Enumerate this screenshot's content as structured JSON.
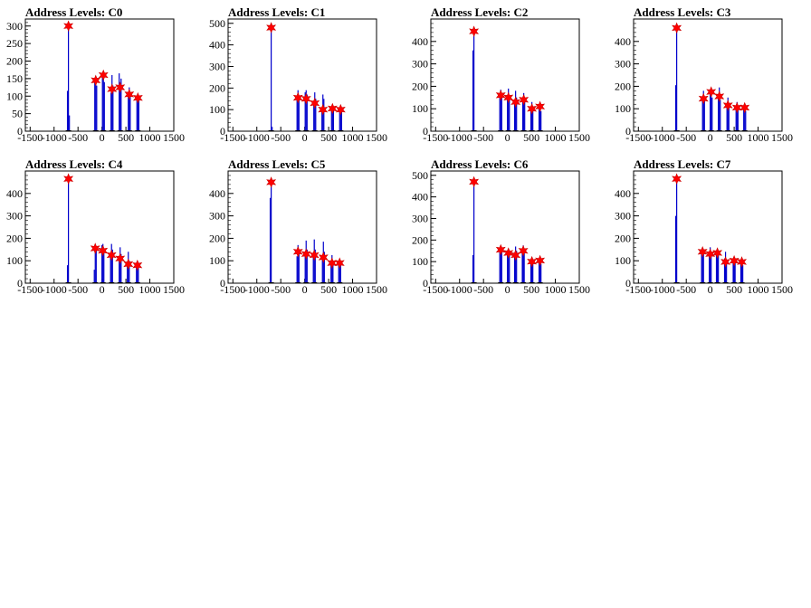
{
  "charts": [
    {
      "title": "Address Levels: C0",
      "ylim": [
        0,
        320
      ],
      "yticks": [
        0,
        50,
        100,
        150,
        200,
        250,
        300
      ]
    },
    {
      "title": "Address Levels: C1",
      "ylim": [
        0,
        520
      ],
      "yticks": [
        0,
        100,
        200,
        300,
        400,
        500
      ]
    },
    {
      "title": "Address Levels: C2",
      "ylim": [
        0,
        500
      ],
      "yticks": [
        0,
        100,
        200,
        300,
        400
      ]
    },
    {
      "title": "Address Levels: C3",
      "ylim": [
        0,
        500
      ],
      "yticks": [
        0,
        100,
        200,
        300,
        400
      ]
    },
    {
      "title": "Address Levels: C4",
      "ylim": [
        0,
        500
      ],
      "yticks": [
        0,
        100,
        200,
        300,
        400
      ]
    },
    {
      "title": "Address Levels: C5",
      "ylim": [
        0,
        500
      ],
      "yticks": [
        0,
        100,
        200,
        300,
        400
      ]
    },
    {
      "title": "Address Levels: C6",
      "ylim": [
        0,
        520
      ],
      "yticks": [
        0,
        100,
        200,
        300,
        400,
        500
      ]
    },
    {
      "title": "Address Levels: C7",
      "ylim": [
        0,
        500
      ],
      "yticks": [
        0,
        100,
        200,
        300,
        400
      ]
    }
  ],
  "xticks": [
    -1500,
    -1000,
    -500,
    0,
    500,
    1000,
    1500
  ],
  "colors": {
    "histogram": "#0000cc",
    "marker": "#ff0000",
    "axis": "#000000"
  },
  "chart_data": [
    {
      "type": "bar",
      "title": "Address Levels: C0",
      "xlim": [
        -1600,
        1500
      ],
      "ylim": [
        0,
        320
      ],
      "peaks": [
        [
          -700,
          300
        ],
        [
          -130,
          145
        ],
        [
          30,
          160
        ],
        [
          210,
          120
        ],
        [
          380,
          125
        ],
        [
          570,
          105
        ],
        [
          750,
          95
        ]
      ],
      "histogram": [
        [
          -720,
          115
        ],
        [
          -700,
          310
        ],
        [
          -680,
          45
        ],
        [
          -150,
          140
        ],
        [
          -130,
          150
        ],
        [
          -110,
          130
        ],
        [
          10,
          165
        ],
        [
          30,
          160
        ],
        [
          50,
          140
        ],
        [
          190,
          110
        ],
        [
          210,
          160
        ],
        [
          230,
          130
        ],
        [
          360,
          165
        ],
        [
          380,
          130
        ],
        [
          400,
          150
        ],
        [
          550,
          110
        ],
        [
          570,
          125
        ],
        [
          590,
          100
        ],
        [
          730,
          100
        ],
        [
          750,
          95
        ],
        [
          770,
          90
        ]
      ]
    },
    {
      "type": "bar",
      "title": "Address Levels: C1",
      "xlim": [
        -1600,
        1500
      ],
      "ylim": [
        0,
        520
      ],
      "peaks": [
        [
          -700,
          480
        ],
        [
          -140,
          155
        ],
        [
          30,
          150
        ],
        [
          210,
          130
        ],
        [
          380,
          100
        ],
        [
          580,
          105
        ],
        [
          750,
          100
        ]
      ],
      "histogram": [
        [
          -700,
          490
        ],
        [
          -680,
          20
        ],
        [
          -160,
          150
        ],
        [
          -140,
          190
        ],
        [
          -120,
          160
        ],
        [
          10,
          180
        ],
        [
          30,
          190
        ],
        [
          50,
          170
        ],
        [
          190,
          130
        ],
        [
          210,
          180
        ],
        [
          230,
          150
        ],
        [
          360,
          110
        ],
        [
          380,
          170
        ],
        [
          400,
          150
        ],
        [
          560,
          110
        ],
        [
          580,
          120
        ],
        [
          600,
          100
        ],
        [
          730,
          110
        ],
        [
          750,
          105
        ],
        [
          770,
          90
        ]
      ]
    },
    {
      "type": "bar",
      "title": "Address Levels: C2",
      "xlim": [
        -1600,
        1500
      ],
      "ylim": [
        0,
        500
      ],
      "peaks": [
        [
          -700,
          445
        ],
        [
          -140,
          160
        ],
        [
          20,
          150
        ],
        [
          170,
          130
        ],
        [
          340,
          140
        ],
        [
          510,
          100
        ],
        [
          680,
          110
        ]
      ],
      "histogram": [
        [
          -720,
          360
        ],
        [
          -700,
          450
        ],
        [
          -160,
          150
        ],
        [
          -140,
          185
        ],
        [
          -120,
          160
        ],
        [
          0,
          160
        ],
        [
          20,
          190
        ],
        [
          40,
          150
        ],
        [
          150,
          140
        ],
        [
          170,
          180
        ],
        [
          190,
          150
        ],
        [
          320,
          150
        ],
        [
          340,
          170
        ],
        [
          360,
          140
        ],
        [
          490,
          100
        ],
        [
          510,
          130
        ],
        [
          530,
          110
        ],
        [
          660,
          110
        ],
        [
          680,
          115
        ],
        [
          700,
          90
        ]
      ]
    },
    {
      "type": "bar",
      "title": "Address Levels: C3",
      "xlim": [
        -1600,
        1500
      ],
      "ylim": [
        0,
        500
      ],
      "peaks": [
        [
          -700,
          460
        ],
        [
          -140,
          145
        ],
        [
          20,
          175
        ],
        [
          190,
          155
        ],
        [
          370,
          115
        ],
        [
          560,
          105
        ],
        [
          720,
          105
        ]
      ],
      "histogram": [
        [
          -720,
          205
        ],
        [
          -700,
          465
        ],
        [
          -160,
          150
        ],
        [
          -140,
          180
        ],
        [
          -120,
          140
        ],
        [
          0,
          170
        ],
        [
          20,
          190
        ],
        [
          40,
          150
        ],
        [
          170,
          150
        ],
        [
          190,
          195
        ],
        [
          210,
          140
        ],
        [
          350,
          120
        ],
        [
          370,
          150
        ],
        [
          390,
          110
        ],
        [
          540,
          110
        ],
        [
          560,
          130
        ],
        [
          580,
          100
        ],
        [
          700,
          110
        ],
        [
          720,
          120
        ],
        [
          740,
          90
        ]
      ]
    },
    {
      "type": "bar",
      "title": "Address Levels: C4",
      "xlim": [
        -1600,
        1500
      ],
      "ylim": [
        0,
        500
      ],
      "peaks": [
        [
          -700,
          465
        ],
        [
          -140,
          155
        ],
        [
          20,
          145
        ],
        [
          200,
          125
        ],
        [
          380,
          110
        ],
        [
          550,
          85
        ],
        [
          740,
          80
        ]
      ],
      "histogram": [
        [
          -720,
          80
        ],
        [
          -700,
          470
        ],
        [
          -160,
          60
        ],
        [
          -140,
          165
        ],
        [
          -120,
          150
        ],
        [
          0,
          170
        ],
        [
          20,
          175
        ],
        [
          40,
          140
        ],
        [
          180,
          130
        ],
        [
          200,
          175
        ],
        [
          220,
          150
        ],
        [
          360,
          115
        ],
        [
          380,
          160
        ],
        [
          400,
          130
        ],
        [
          530,
          90
        ],
        [
          550,
          140
        ],
        [
          570,
          100
        ],
        [
          720,
          85
        ],
        [
          740,
          90
        ],
        [
          760,
          70
        ]
      ]
    },
    {
      "type": "bar",
      "title": "Address Levels: C5",
      "xlim": [
        -1600,
        1500
      ],
      "ylim": [
        0,
        500
      ],
      "peaks": [
        [
          -700,
          450
        ],
        [
          -140,
          140
        ],
        [
          30,
          130
        ],
        [
          200,
          125
        ],
        [
          390,
          115
        ],
        [
          570,
          90
        ],
        [
          730,
          90
        ]
      ],
      "histogram": [
        [
          -720,
          380
        ],
        [
          -700,
          455
        ],
        [
          -160,
          120
        ],
        [
          -140,
          170
        ],
        [
          -120,
          130
        ],
        [
          10,
          140
        ],
        [
          30,
          190
        ],
        [
          50,
          150
        ],
        [
          180,
          130
        ],
        [
          200,
          195
        ],
        [
          220,
          150
        ],
        [
          370,
          120
        ],
        [
          390,
          185
        ],
        [
          410,
          140
        ],
        [
          550,
          95
        ],
        [
          570,
          125
        ],
        [
          590,
          100
        ],
        [
          710,
          95
        ],
        [
          730,
          100
        ],
        [
          750,
          80
        ]
      ]
    },
    {
      "type": "bar",
      "title": "Address Levels: C6",
      "xlim": [
        -1600,
        1500
      ],
      "ylim": [
        0,
        520
      ],
      "peaks": [
        [
          -700,
          470
        ],
        [
          -140,
          155
        ],
        [
          20,
          140
        ],
        [
          170,
          130
        ],
        [
          330,
          150
        ],
        [
          510,
          100
        ],
        [
          680,
          105
        ]
      ],
      "histogram": [
        [
          -720,
          130
        ],
        [
          -700,
          475
        ],
        [
          -160,
          150
        ],
        [
          -140,
          170
        ],
        [
          -120,
          150
        ],
        [
          0,
          150
        ],
        [
          20,
          160
        ],
        [
          40,
          140
        ],
        [
          150,
          140
        ],
        [
          170,
          170
        ],
        [
          190,
          150
        ],
        [
          310,
          160
        ],
        [
          330,
          175
        ],
        [
          350,
          140
        ],
        [
          490,
          100
        ],
        [
          510,
          120
        ],
        [
          530,
          100
        ],
        [
          660,
          105
        ],
        [
          680,
          110
        ],
        [
          700,
          90
        ]
      ]
    },
    {
      "type": "bar",
      "title": "Address Levels: C7",
      "xlim": [
        -1600,
        1500
      ],
      "ylim": [
        0,
        500
      ],
      "peaks": [
        [
          -700,
          465
        ],
        [
          -160,
          140
        ],
        [
          0,
          130
        ],
        [
          150,
          135
        ],
        [
          320,
          95
        ],
        [
          500,
          100
        ],
        [
          660,
          95
        ]
      ],
      "histogram": [
        [
          -720,
          300
        ],
        [
          -700,
          470
        ],
        [
          -180,
          130
        ],
        [
          -160,
          150
        ],
        [
          -140,
          130
        ],
        [
          -20,
          140
        ],
        [
          0,
          160
        ],
        [
          20,
          130
        ],
        [
          130,
          140
        ],
        [
          150,
          145
        ],
        [
          170,
          130
        ],
        [
          300,
          110
        ],
        [
          320,
          140
        ],
        [
          340,
          100
        ],
        [
          480,
          105
        ],
        [
          500,
          115
        ],
        [
          520,
          95
        ],
        [
          640,
          100
        ],
        [
          660,
          105
        ],
        [
          680,
          80
        ]
      ]
    }
  ]
}
